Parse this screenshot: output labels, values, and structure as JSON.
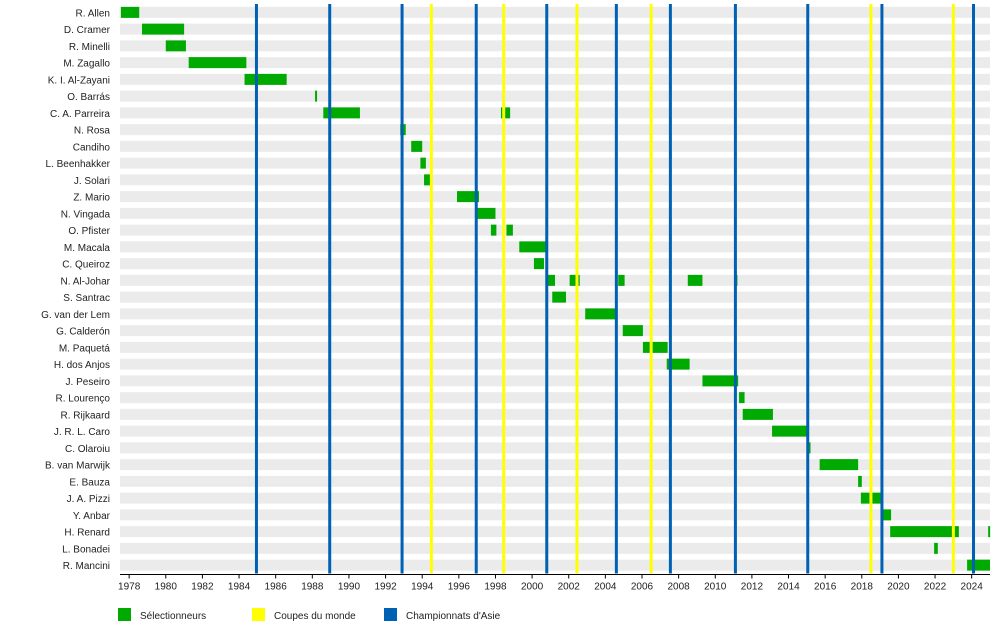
{
  "chart_data": {
    "type": "timeline",
    "xlim": [
      1977.5,
      2025.0
    ],
    "x_ticks": [
      "1978",
      "1980",
      "1982",
      "1984",
      "1986",
      "1988",
      "1990",
      "1992",
      "1994",
      "1996",
      "1998",
      "2000",
      "2002",
      "2004",
      "2006",
      "2008",
      "2010",
      "2012",
      "2014",
      "2016",
      "2018",
      "2020",
      "2022",
      "2024"
    ],
    "rows": [
      {
        "name": "R. Allen",
        "periods": [
          [
            1977.55,
            1978.55
          ]
        ]
      },
      {
        "name": "D. Cramer",
        "periods": [
          [
            1978.7,
            1981.0
          ]
        ]
      },
      {
        "name": "R. Minelli",
        "periods": [
          [
            1980.0,
            1981.1
          ]
        ]
      },
      {
        "name": "M. Zagallo",
        "periods": [
          [
            1981.25,
            1984.4
          ]
        ]
      },
      {
        "name": "K. I. Al-Zayani",
        "periods": [
          [
            1984.3,
            1986.6
          ]
        ]
      },
      {
        "name": "O. Barrás",
        "periods": [
          [
            1988.15,
            1988.25
          ]
        ]
      },
      {
        "name": "C. A. Parreira",
        "periods": [
          [
            1988.6,
            1990.6
          ],
          [
            1998.3,
            1998.8
          ]
        ]
      },
      {
        "name": "N. Rosa",
        "periods": [
          [
            1992.8,
            1993.1
          ]
        ]
      },
      {
        "name": "Candiho",
        "periods": [
          [
            1993.4,
            1994.0
          ]
        ]
      },
      {
        "name": "L. Beenhakker",
        "periods": [
          [
            1993.9,
            1994.2
          ]
        ]
      },
      {
        "name": "J. Solari",
        "periods": [
          [
            1994.1,
            1994.5
          ]
        ]
      },
      {
        "name": "Z. Mario",
        "periods": [
          [
            1995.9,
            1997.1
          ]
        ]
      },
      {
        "name": "N. Vingada",
        "periods": [
          [
            1997.0,
            1998.0
          ]
        ]
      },
      {
        "name": "O. Pfister",
        "periods": [
          [
            1997.75,
            1998.05
          ],
          [
            1998.6,
            1998.95
          ]
        ]
      },
      {
        "name": "M. Macala",
        "periods": [
          [
            1999.3,
            2000.8
          ]
        ]
      },
      {
        "name": "C. Queiroz",
        "periods": [
          [
            2000.1,
            2000.65
          ]
        ]
      },
      {
        "name": "N. Al-Johar",
        "periods": [
          [
            2000.85,
            2001.25
          ],
          [
            2002.05,
            2002.6
          ],
          [
            2004.7,
            2005.05
          ],
          [
            2008.5,
            2009.3
          ],
          [
            2011.1,
            2011.2
          ]
        ]
      },
      {
        "name": "S. Santrac",
        "periods": [
          [
            2001.1,
            2001.85
          ]
        ]
      },
      {
        "name": "G. van der Lem",
        "periods": [
          [
            2002.9,
            2004.65
          ]
        ]
      },
      {
        "name": "G. Calderón",
        "periods": [
          [
            2004.95,
            2006.05
          ]
        ]
      },
      {
        "name": "M. Paquetá",
        "periods": [
          [
            2006.05,
            2007.4
          ]
        ]
      },
      {
        "name": "H. dos Anjos",
        "periods": [
          [
            2007.35,
            2008.6
          ]
        ]
      },
      {
        "name": "J. Peseiro",
        "periods": [
          [
            2009.3,
            2011.25
          ]
        ]
      },
      {
        "name": "R. Lourenço",
        "periods": [
          [
            2011.3,
            2011.6
          ]
        ]
      },
      {
        "name": "R. Rijkaard",
        "periods": [
          [
            2011.5,
            2013.15
          ]
        ]
      },
      {
        "name": "J. R. L. Caro",
        "periods": [
          [
            2013.1,
            2015.1
          ]
        ]
      },
      {
        "name": "C. Olaroiu",
        "periods": [
          [
            2015.0,
            2015.2
          ]
        ]
      },
      {
        "name": "B. van Marwijk",
        "periods": [
          [
            2015.7,
            2017.8
          ]
        ]
      },
      {
        "name": "E. Bauza",
        "periods": [
          [
            2017.8,
            2018.0
          ]
        ]
      },
      {
        "name": "J. A. Pizzi",
        "periods": [
          [
            2017.95,
            2019.15
          ]
        ]
      },
      {
        "name": "Y. Anbar",
        "periods": [
          [
            2019.05,
            2019.6
          ]
        ]
      },
      {
        "name": "H. Renard",
        "periods": [
          [
            2019.55,
            2023.3
          ],
          [
            2024.9,
            2025.0
          ]
        ]
      },
      {
        "name": "L. Bonadei",
        "periods": [
          [
            2021.95,
            2022.15
          ]
        ]
      },
      {
        "name": "R. Mancini",
        "periods": [
          [
            2023.75,
            2025.0
          ]
        ]
      }
    ],
    "world_cups": [
      1994.5,
      1998.45,
      2002.45,
      2006.5,
      2018.5,
      2023.0
    ],
    "asian_cups": [
      1984.95,
      1988.95,
      1992.9,
      1996.95,
      2000.8,
      2004.6,
      2007.55,
      2011.1,
      2015.05,
      2019.1,
      2024.1
    ],
    "legend": [
      {
        "label": "Sélectionneurs",
        "color": "#00aa00"
      },
      {
        "label": "Coupes du monde",
        "color": "#ffff00"
      },
      {
        "label": "Championnats d'Asie",
        "color": "#0060b4"
      }
    ],
    "colors": {
      "stripe": "#ebebeb",
      "bar": "#00aa00",
      "world_cup": "#ffff00",
      "asian_cup": "#0060b4",
      "axis": "#000000"
    }
  }
}
